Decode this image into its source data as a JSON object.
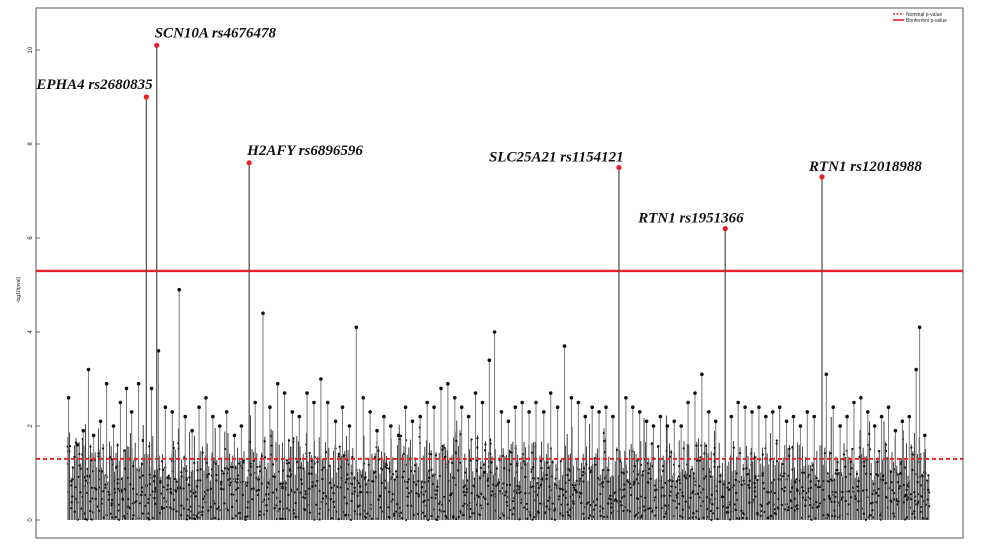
{
  "chart_data": {
    "type": "scatter",
    "title": "",
    "xlabel": "",
    "ylabel": "-log10(pval)",
    "ylim": [
      0,
      11
    ],
    "yticks": [
      0,
      2,
      4,
      6,
      8,
      10
    ],
    "legend": {
      "placement": "top-right",
      "entries": [
        {
          "name": "Nominal p-value",
          "style": "dashed",
          "color": "#e8202a"
        },
        {
          "name": "Bonferroni p-value",
          "style": "solid",
          "color": "#e8202a"
        }
      ]
    },
    "thresholds": [
      {
        "name": "Nominal p-value",
        "value": 1.3,
        "style": "dashed",
        "color": "#e8202a"
      },
      {
        "name": "Bonferroni p-value",
        "value": 5.3,
        "style": "solid",
        "color": "#e8202a"
      }
    ],
    "xlim": [
      0,
      1000
    ],
    "colors": {
      "stem": "#7a7a7a",
      "point": "#111111",
      "highlight": "#e8202a"
    },
    "annotated": [
      {
        "label": "EPHA4 rs2680835",
        "x": 93,
        "y": 9.0
      },
      {
        "label": "SCN10A rs4676478",
        "x": 105,
        "y": 10.1
      },
      {
        "label": "H2AFY rs6896596",
        "x": 212,
        "y": 7.6
      },
      {
        "label": "SLC25A21 rs1154121",
        "x": 640,
        "y": 7.5
      },
      {
        "label": "RTN1 rs1951366",
        "x": 763,
        "y": 6.2
      },
      {
        "label": "RTN1 rs12018988",
        "x": 875,
        "y": 7.3
      }
    ],
    "peaks": [
      {
        "x": 3,
        "y": 2.6
      },
      {
        "x": 13,
        "y": 1.6
      },
      {
        "x": 20,
        "y": 1.9
      },
      {
        "x": 26,
        "y": 3.2
      },
      {
        "x": 32,
        "y": 1.8
      },
      {
        "x": 40,
        "y": 2.1
      },
      {
        "x": 47,
        "y": 2.9
      },
      {
        "x": 55,
        "y": 2.0
      },
      {
        "x": 63,
        "y": 2.5
      },
      {
        "x": 70,
        "y": 2.8
      },
      {
        "x": 76,
        "y": 2.3
      },
      {
        "x": 84,
        "y": 2.9
      },
      {
        "x": 99,
        "y": 2.8
      },
      {
        "x": 107,
        "y": 3.6
      },
      {
        "x": 115,
        "y": 2.4
      },
      {
        "x": 123,
        "y": 2.3
      },
      {
        "x": 131,
        "y": 4.9
      },
      {
        "x": 138,
        "y": 2.2
      },
      {
        "x": 146,
        "y": 1.9
      },
      {
        "x": 154,
        "y": 2.4
      },
      {
        "x": 162,
        "y": 2.6
      },
      {
        "x": 170,
        "y": 2.2
      },
      {
        "x": 178,
        "y": 2.0
      },
      {
        "x": 186,
        "y": 2.3
      },
      {
        "x": 195,
        "y": 1.8
      },
      {
        "x": 203,
        "y": 2.0
      },
      {
        "x": 219,
        "y": 2.5
      },
      {
        "x": 228,
        "y": 4.4
      },
      {
        "x": 236,
        "y": 2.4
      },
      {
        "x": 245,
        "y": 2.9
      },
      {
        "x": 253,
        "y": 2.7
      },
      {
        "x": 262,
        "y": 2.3
      },
      {
        "x": 270,
        "y": 2.2
      },
      {
        "x": 279,
        "y": 2.7
      },
      {
        "x": 287,
        "y": 2.5
      },
      {
        "x": 295,
        "y": 3.0
      },
      {
        "x": 303,
        "y": 2.5
      },
      {
        "x": 312,
        "y": 2.1
      },
      {
        "x": 320,
        "y": 2.4
      },
      {
        "x": 328,
        "y": 2.0
      },
      {
        "x": 336,
        "y": 4.1
      },
      {
        "x": 344,
        "y": 2.6
      },
      {
        "x": 352,
        "y": 2.3
      },
      {
        "x": 360,
        "y": 1.9
      },
      {
        "x": 368,
        "y": 2.2
      },
      {
        "x": 376,
        "y": 2.0
      },
      {
        "x": 385,
        "y": 1.8
      },
      {
        "x": 393,
        "y": 2.4
      },
      {
        "x": 401,
        "y": 2.1
      },
      {
        "x": 410,
        "y": 2.2
      },
      {
        "x": 418,
        "y": 2.5
      },
      {
        "x": 426,
        "y": 2.4
      },
      {
        "x": 434,
        "y": 2.8
      },
      {
        "x": 442,
        "y": 2.9
      },
      {
        "x": 450,
        "y": 2.6
      },
      {
        "x": 458,
        "y": 2.4
      },
      {
        "x": 466,
        "y": 2.2
      },
      {
        "x": 474,
        "y": 2.7
      },
      {
        "x": 482,
        "y": 2.5
      },
      {
        "x": 490,
        "y": 3.4
      },
      {
        "x": 496,
        "y": 4.0
      },
      {
        "x": 504,
        "y": 2.3
      },
      {
        "x": 512,
        "y": 2.1
      },
      {
        "x": 520,
        "y": 2.4
      },
      {
        "x": 528,
        "y": 2.5
      },
      {
        "x": 536,
        "y": 2.3
      },
      {
        "x": 544,
        "y": 2.5
      },
      {
        "x": 553,
        "y": 2.3
      },
      {
        "x": 561,
        "y": 2.7
      },
      {
        "x": 569,
        "y": 2.4
      },
      {
        "x": 577,
        "y": 3.7
      },
      {
        "x": 585,
        "y": 2.6
      },
      {
        "x": 593,
        "y": 2.5
      },
      {
        "x": 601,
        "y": 2.2
      },
      {
        "x": 609,
        "y": 2.4
      },
      {
        "x": 617,
        "y": 2.3
      },
      {
        "x": 625,
        "y": 2.4
      },
      {
        "x": 633,
        "y": 2.2
      },
      {
        "x": 648,
        "y": 2.6
      },
      {
        "x": 656,
        "y": 2.4
      },
      {
        "x": 664,
        "y": 2.3
      },
      {
        "x": 672,
        "y": 2.1
      },
      {
        "x": 680,
        "y": 2.0
      },
      {
        "x": 688,
        "y": 2.2
      },
      {
        "x": 696,
        "y": 2.0
      },
      {
        "x": 704,
        "y": 2.1
      },
      {
        "x": 712,
        "y": 2.0
      },
      {
        "x": 720,
        "y": 2.5
      },
      {
        "x": 728,
        "y": 2.7
      },
      {
        "x": 736,
        "y": 3.1
      },
      {
        "x": 744,
        "y": 2.3
      },
      {
        "x": 752,
        "y": 2.1
      },
      {
        "x": 770,
        "y": 2.2
      },
      {
        "x": 778,
        "y": 2.5
      },
      {
        "x": 786,
        "y": 2.4
      },
      {
        "x": 794,
        "y": 2.3
      },
      {
        "x": 802,
        "y": 2.4
      },
      {
        "x": 810,
        "y": 2.2
      },
      {
        "x": 818,
        "y": 2.3
      },
      {
        "x": 826,
        "y": 2.4
      },
      {
        "x": 834,
        "y": 2.1
      },
      {
        "x": 842,
        "y": 2.2
      },
      {
        "x": 850,
        "y": 2.0
      },
      {
        "x": 858,
        "y": 2.3
      },
      {
        "x": 866,
        "y": 2.2
      },
      {
        "x": 880,
        "y": 3.1
      },
      {
        "x": 888,
        "y": 2.4
      },
      {
        "x": 896,
        "y": 2.0
      },
      {
        "x": 904,
        "y": 2.2
      },
      {
        "x": 912,
        "y": 2.5
      },
      {
        "x": 920,
        "y": 2.6
      },
      {
        "x": 928,
        "y": 2.3
      },
      {
        "x": 936,
        "y": 2.0
      },
      {
        "x": 944,
        "y": 2.2
      },
      {
        "x": 952,
        "y": 2.4
      },
      {
        "x": 960,
        "y": 1.9
      },
      {
        "x": 968,
        "y": 2.1
      },
      {
        "x": 976,
        "y": 2.2
      },
      {
        "x": 984,
        "y": 3.2
      },
      {
        "x": 988,
        "y": 4.1
      },
      {
        "x": 994,
        "y": 1.8
      }
    ]
  }
}
